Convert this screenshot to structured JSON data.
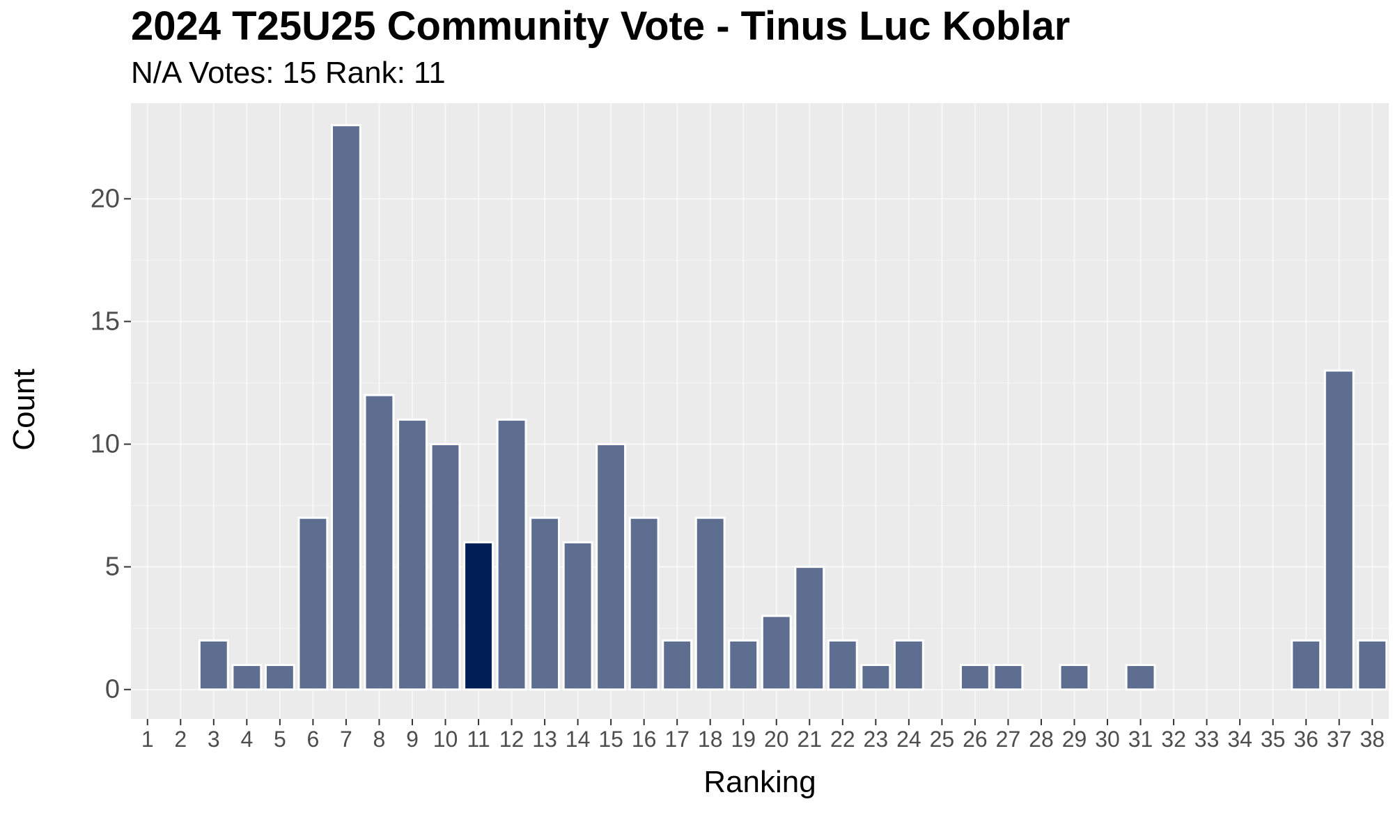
{
  "chart_data": {
    "type": "bar",
    "title": "2024 T25U25 Community Vote - Tinus Luc Koblar",
    "subtitle": "N/A Votes: 15  Rank: 11",
    "xlabel": "Ranking",
    "ylabel": "Count",
    "categories": [
      "1",
      "2",
      "3",
      "4",
      "5",
      "6",
      "7",
      "8",
      "9",
      "10",
      "11",
      "12",
      "13",
      "14",
      "15",
      "16",
      "17",
      "18",
      "19",
      "20",
      "21",
      "22",
      "23",
      "24",
      "25",
      "26",
      "27",
      "28",
      "29",
      "30",
      "31",
      "32",
      "33",
      "34",
      "35",
      "36",
      "37",
      "38"
    ],
    "values": [
      0,
      0,
      2,
      1,
      1,
      7,
      23,
      12,
      11,
      10,
      6,
      11,
      7,
      6,
      10,
      7,
      2,
      7,
      2,
      3,
      5,
      2,
      1,
      2,
      0,
      1,
      1,
      0,
      1,
      0,
      1,
      0,
      0,
      0,
      0,
      2,
      13,
      2
    ],
    "highlight_category": "11",
    "ylim": [
      -1.2,
      23.9
    ],
    "yticks": [
      0,
      5,
      10,
      15,
      20
    ],
    "grid": true,
    "colors": {
      "bar": "#5e6e91",
      "highlight": "#001f57",
      "bar_outline": "#ffffff",
      "panel": "#ebebeb",
      "grid": "#ffffff"
    }
  }
}
